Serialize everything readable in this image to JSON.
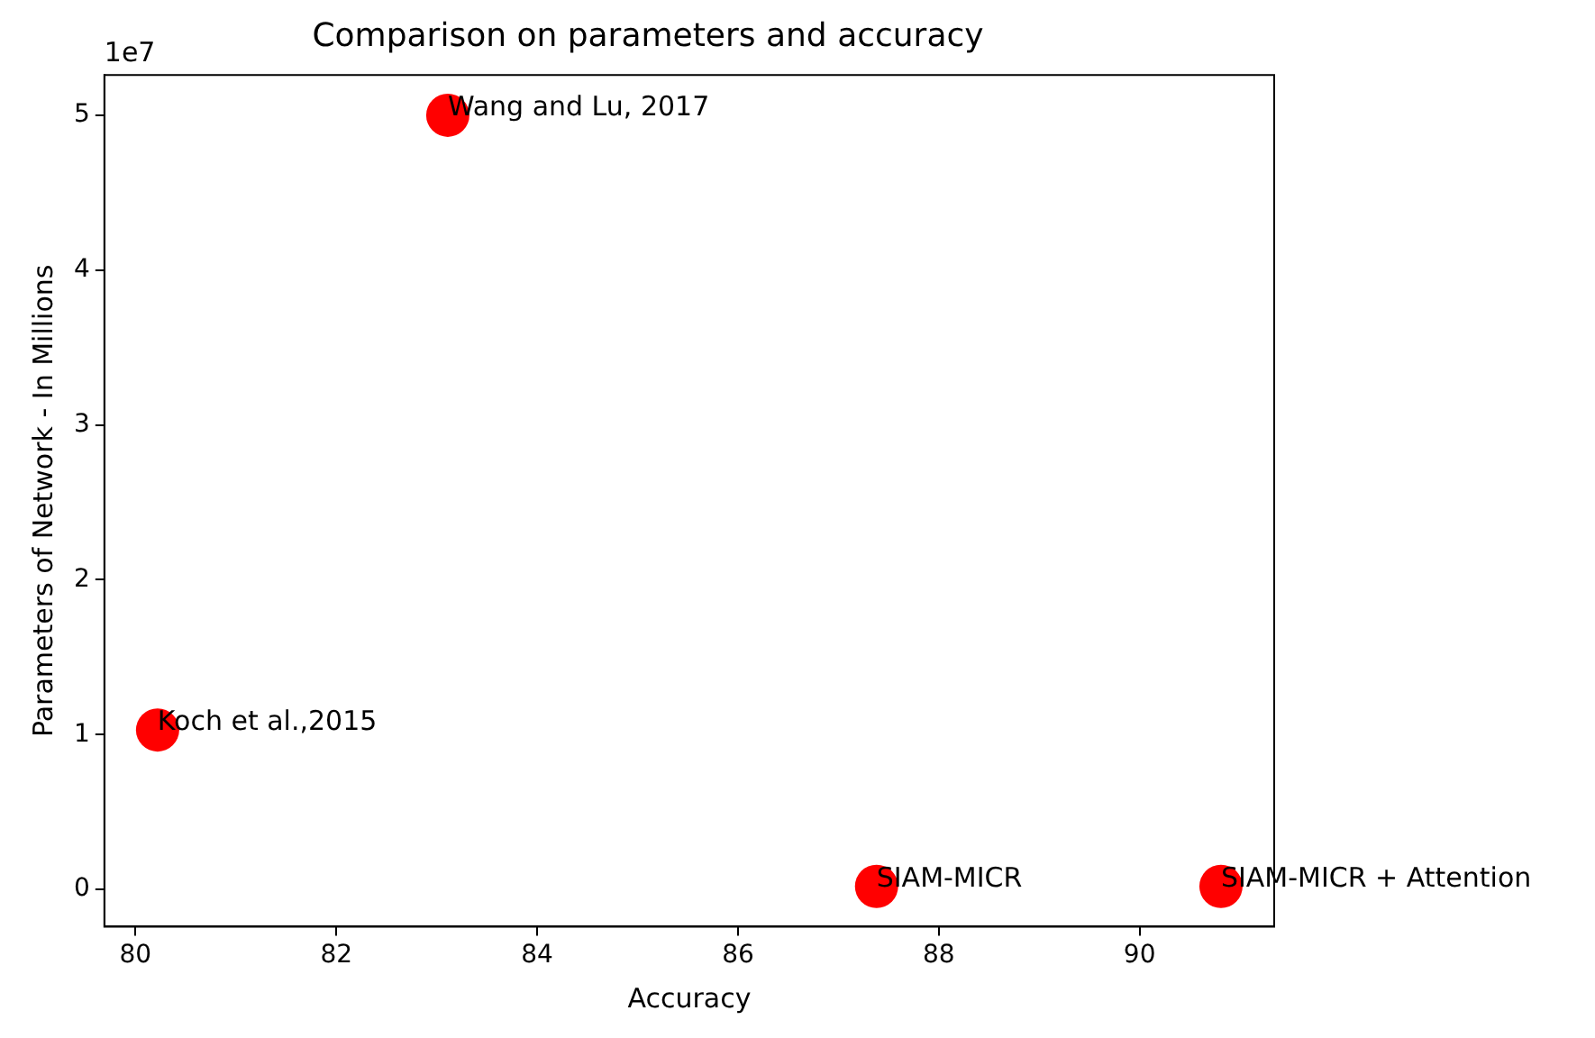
{
  "chart_data": {
    "type": "scatter",
    "title": "Comparison on parameters and accuracy",
    "xlabel": "Accuracy",
    "ylabel": "Parameters of Network - In Millions",
    "x": [
      80.22,
      83.11,
      87.38,
      90.81
    ],
    "series": [
      {
        "color": "#ff0000",
        "values": [
          1.03,
          5.0,
          0.02,
          0.02
        ]
      }
    ],
    "xlim": [
      79.69,
      91.34
    ],
    "xticks": [
      80,
      82,
      84,
      86,
      88,
      90
    ],
    "ylim": [
      -0.24,
      5.26
    ],
    "yticks": [
      0,
      1,
      2,
      3,
      4,
      5
    ],
    "annotations": [
      "1e7",
      {
        "text": "Koch et al.,2015",
        "x": 80.22,
        "y": 1.03
      },
      {
        "text": "Wang and Lu, 2017",
        "x": 83.11,
        "y": 5.0
      },
      {
        "text": "SIAM-MICR",
        "x": 87.38,
        "y": 0.02
      },
      {
        "text": "SIAM-MICR + Attention",
        "x": 90.81,
        "y": 0.02
      }
    ],
    "grid": false,
    "legend": false,
    "marker": "circle"
  }
}
